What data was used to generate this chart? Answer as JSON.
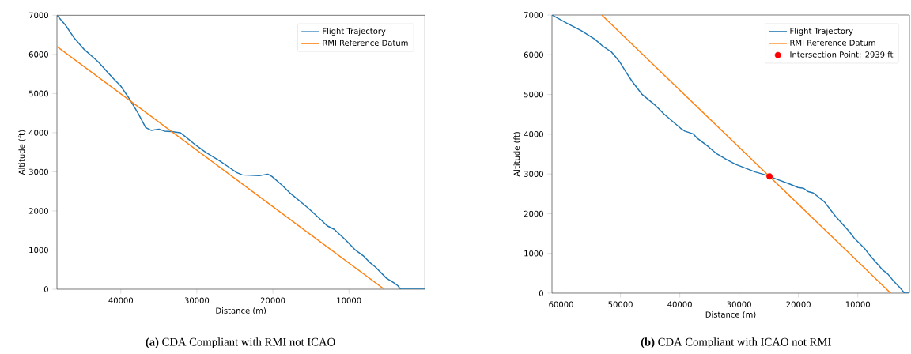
{
  "chart_data": [
    {
      "type": "line",
      "xlabel": "Distance (m)",
      "ylabel": "Altitude (ft)",
      "xlim": [
        48400,
        0
      ],
      "ylim": [
        0,
        7000
      ],
      "xticks": [
        40000,
        30000,
        20000,
        10000
      ],
      "yticks": [
        0,
        1000,
        2000,
        3000,
        4000,
        5000,
        6000,
        7000
      ],
      "legend": "top right",
      "annotations": [
        "**(a)** CDA Compliant with RMI not ICAO"
      ],
      "series": [
        {
          "name": "Flight Trajectory",
          "color": "#1f77b4",
          "x": [
            48400,
            47280,
            46130,
            44830,
            42970,
            41120,
            40000,
            38880,
            37770,
            36730,
            36020,
            34980,
            34240,
            33310,
            32190,
            31450,
            30330,
            28850,
            26990,
            25870,
            24760,
            24010,
            21780,
            20670,
            20110,
            18810,
            17700,
            15460,
            13610,
            12860,
            11930,
            10450,
            9150,
            8030,
            7290,
            6540,
            5060,
            4130,
            3570,
            3200,
            0
          ],
          "values": [
            7000,
            6750,
            6420,
            6130,
            5810,
            5410,
            5190,
            4870,
            4510,
            4130,
            4060,
            4090,
            4040,
            4030,
            4000,
            3890,
            3710,
            3500,
            3280,
            3130,
            2980,
            2920,
            2900,
            2940,
            2880,
            2660,
            2450,
            2090,
            1760,
            1620,
            1530,
            1260,
            1000,
            840,
            690,
            570,
            280,
            170,
            90,
            0,
            0
          ]
        },
        {
          "name": "RMI Reference Datum",
          "color": "#ff7f0e",
          "x": [
            48400,
            5350
          ],
          "values": [
            6200,
            0
          ]
        }
      ]
    },
    {
      "type": "line",
      "xlabel": "Distance (m)",
      "ylabel": "Altitude (ft)",
      "xlim": [
        61540,
        1300
      ],
      "ylim": [
        0,
        7000
      ],
      "xticks": [
        60000,
        50000,
        40000,
        30000,
        20000,
        10000
      ],
      "yticks": [
        0,
        1000,
        2000,
        3000,
        4000,
        5000,
        6000,
        7000
      ],
      "legend": "top right",
      "annotations": [
        "**(b)** CDA Compliant with ICAO not RMI"
      ],
      "series": [
        {
          "name": "Flight Trajectory",
          "color": "#1f77b4",
          "x": [
            61540,
            58970,
            56640,
            54310,
            52920,
            51520,
            50120,
            48960,
            48030,
            46400,
            44070,
            42670,
            41270,
            39870,
            39170,
            37770,
            37070,
            35210,
            33810,
            32180,
            30550,
            29150,
            27290,
            25420,
            23560,
            21700,
            20070,
            19130,
            18440,
            17500,
            15640,
            13780,
            11450,
            10520,
            8890,
            7960,
            5860,
            4930,
            4000,
            2840,
            2140,
            1300
          ],
          "values": [
            7000,
            6790,
            6610,
            6390,
            6210,
            6070,
            5820,
            5540,
            5330,
            5010,
            4720,
            4510,
            4330,
            4150,
            4080,
            4010,
            3900,
            3690,
            3510,
            3370,
            3240,
            3160,
            3050,
            2970,
            2860,
            2760,
            2660,
            2640,
            2560,
            2520,
            2300,
            1940,
            1550,
            1370,
            1130,
            950,
            590,
            480,
            310,
            130,
            0,
            0
          ]
        },
        {
          "name": "RMI Reference Datum",
          "color": "#ff7f0e",
          "x": [
            53150,
            4455
          ],
          "values": [
            7000,
            0
          ]
        },
        {
          "name": "Intersection Point: 2939 ft",
          "type": "scatter",
          "marker": "circle",
          "color": "#ff0000",
          "x": [
            24870
          ],
          "values": [
            2939
          ]
        }
      ]
    }
  ]
}
